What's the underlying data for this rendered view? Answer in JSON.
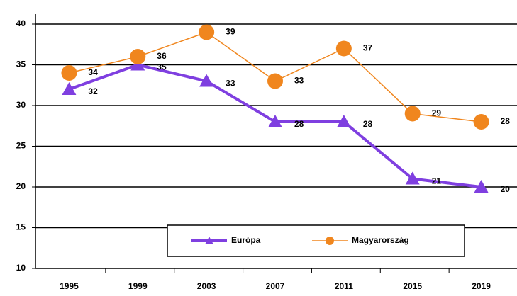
{
  "chart_data": {
    "type": "line",
    "categories": [
      "1995",
      "1999",
      "2003",
      "2007",
      "2011",
      "2015",
      "2019"
    ],
    "series": [
      {
        "name": "Európa",
        "color": "#7f3fe0",
        "marker": "triangle",
        "values": [
          32,
          35,
          33,
          28,
          28,
          21,
          20
        ]
      },
      {
        "name": "Magyarország",
        "color": "#f0861e",
        "marker": "circle",
        "values": [
          34,
          36,
          39,
          33,
          37,
          29,
          28
        ]
      }
    ],
    "ylim": [
      10,
      40
    ],
    "yticks": [
      10,
      15,
      20,
      25,
      30,
      35,
      40
    ],
    "grid": true,
    "legend": "bottom"
  }
}
